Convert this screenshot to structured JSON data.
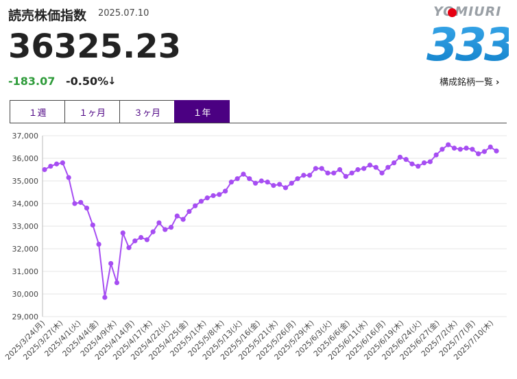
{
  "header": {
    "title": "読売株価指数",
    "date": "2025.07.10",
    "price": "36325.23",
    "change": "-183.07",
    "change_pct": "-0.50%",
    "direction_icon": "down-arrow-icon"
  },
  "brand": {
    "logo_text": "YOMIURI",
    "logo_number": "333",
    "dot_color": "#e60012",
    "number_color": "#1e9de0"
  },
  "links": {
    "constituents": "構成銘柄一覧",
    "chevron": "›"
  },
  "tabs": [
    {
      "label": "１週",
      "active": false
    },
    {
      "label": "１ヶ月",
      "active": false
    },
    {
      "label": "３ヶ月",
      "active": false
    },
    {
      "label": "１年",
      "active": true
    }
  ],
  "colors": {
    "accent": "#4b0082",
    "series": "#a64df2",
    "positive_green": "#2e9b3a",
    "grid": "#e5e5e5"
  },
  "chart_data": {
    "type": "line",
    "ylim": [
      29000,
      37000
    ],
    "yticks": [
      "29,000",
      "30,000",
      "31,000",
      "32,000",
      "33,000",
      "34,000",
      "35,000",
      "36,000",
      "37,000"
    ],
    "grid": true,
    "xticklabels": [
      "2025/3/24(月)",
      "2025/3/27(木)",
      "2025/4/1(火)",
      "2025/4/4(金)",
      "2025/4/9(水)",
      "2025/4/14(月)",
      "2025/4/17(木)",
      "2025/4/22(火)",
      "2025/4/25(金)",
      "2025/5/1(木)",
      "2025/5/8(木)",
      "2025/5/13(火)",
      "2025/5/16(金)",
      "2025/5/21(水)",
      "2025/5/26(月)",
      "2025/5/29(木)",
      "2025/6/3(火)",
      "2025/6/6(金)",
      "2025/6/11(水)",
      "2025/6/16(月)",
      "2025/6/19(木)",
      "2025/6/24(火)",
      "2025/6/27(金)",
      "2025/7/2(水)",
      "2025/7/7(月)",
      "2025/7/10(木)"
    ],
    "values": [
      35500,
      35650,
      35750,
      35800,
      35150,
      34000,
      34050,
      33800,
      33050,
      32200,
      29850,
      31350,
      30500,
      32700,
      32050,
      32350,
      32500,
      32400,
      32750,
      33150,
      32850,
      32950,
      33450,
      33300,
      33650,
      33900,
      34100,
      34250,
      34350,
      34400,
      34550,
      34950,
      35100,
      35300,
      35100,
      34900,
      35000,
      34950,
      34800,
      34850,
      34700,
      34900,
      35100,
      35250,
      35250,
      35550,
      35550,
      35350,
      35350,
      35500,
      35200,
      35350,
      35500,
      35550,
      35700,
      35600,
      35350,
      35600,
      35800,
      36050,
      35950,
      35750,
      35650,
      35800,
      35850,
      36150,
      36400,
      36600,
      36450,
      36400,
      36450,
      36400,
      36200,
      36300,
      36500,
      36325.23
    ]
  }
}
